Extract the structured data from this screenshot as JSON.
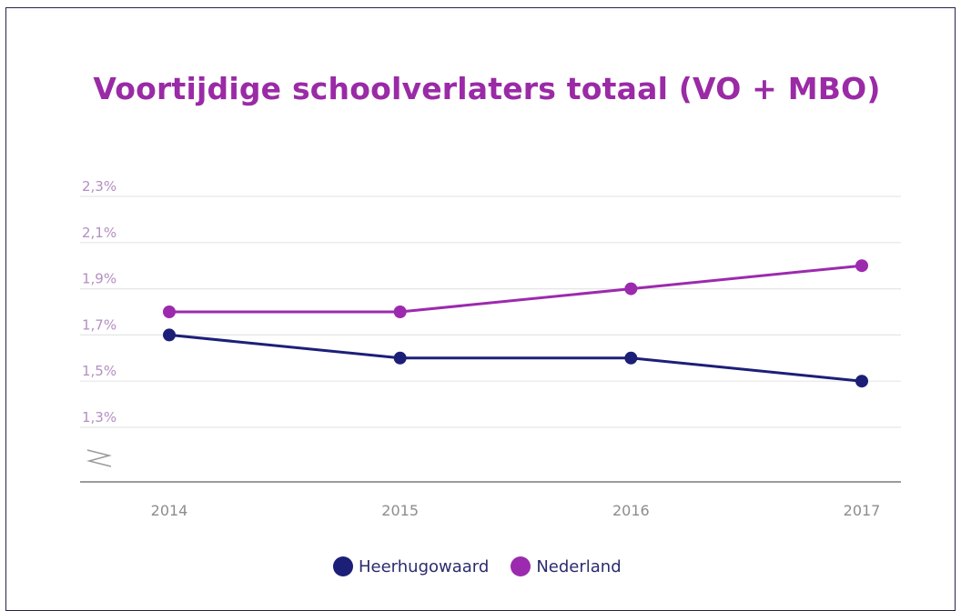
{
  "chart_data": {
    "type": "line",
    "title": "Voortijdige schoolverlaters totaal (VO + MBO)",
    "xlabel": "",
    "ylabel": "",
    "categories": [
      "2014",
      "2015",
      "2016",
      "2017"
    ],
    "ytick_labels": [
      "2,3%",
      "2,1%",
      "1,9%",
      "1,7%",
      "1,5%",
      "1,3%"
    ],
    "ytick_values": [
      2.3,
      2.1,
      1.9,
      1.7,
      1.5,
      1.3
    ],
    "ylim": [
      1.1,
      2.3
    ],
    "grid": true,
    "axis_break": true,
    "legend_position": "bottom",
    "series": [
      {
        "name": "Heerhugowaard",
        "values": [
          1.7,
          1.6,
          1.6,
          1.5
        ],
        "color": "#1c1f78"
      },
      {
        "name": "Nederland",
        "values": [
          1.8,
          1.8,
          1.9,
          2.0
        ],
        "color": "#9c2aae"
      }
    ]
  }
}
